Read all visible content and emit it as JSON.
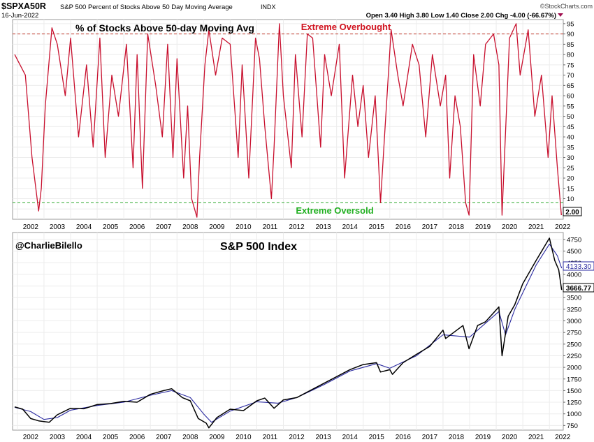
{
  "header": {
    "symbol": "$SPXA50R",
    "description": "S&P 500 Percent of Stocks Above 50 Day Moving Average",
    "exchange": "INDX",
    "date": "16-Jun-2022",
    "ohlc": "Open 3.40  High 3.80  Low 1.40  Close 2.00  Chg -4.00 (-66.67%)",
    "brand": "©StockCharts.com"
  },
  "chart_data": [
    {
      "type": "line",
      "title": "% of Stocks Above 50-day Moving Avg",
      "annotations": [
        "Extreme Overbought",
        "Extreme Oversold"
      ],
      "reference_lines": [
        {
          "label": "Extreme Overbought",
          "y": 90,
          "color": "#c0392b"
        },
        {
          "label": "Extreme Oversold",
          "y": 8,
          "color": "#2eaa2e"
        }
      ],
      "ylim": [
        0,
        97
      ],
      "y_ticks": [
        5,
        10,
        15,
        20,
        25,
        30,
        35,
        40,
        45,
        50,
        55,
        60,
        65,
        70,
        75,
        80,
        85,
        90,
        95
      ],
      "last_value_label": "2.00",
      "series": [
        {
          "color": "#c8102e",
          "x": [
            2001.9,
            2002.3,
            2002.55,
            2002.8,
            2002.9,
            2003.05,
            2003.3,
            2003.5,
            2003.8,
            2004.0,
            2004.3,
            2004.6,
            2004.85,
            2005.1,
            2005.3,
            2005.55,
            2005.8,
            2006.1,
            2006.35,
            2006.5,
            2006.7,
            2006.9,
            2007.2,
            2007.45,
            2007.65,
            2007.85,
            2008.0,
            2008.25,
            2008.4,
            2008.55,
            2008.75,
            2008.85,
            2009.05,
            2009.2,
            2009.45,
            2009.7,
            2010.0,
            2010.3,
            2010.45,
            2010.7,
            2010.95,
            2011.1,
            2011.3,
            2011.55,
            2011.65,
            2011.85,
            2012.0,
            2012.3,
            2012.45,
            2012.7,
            2012.9,
            2013.1,
            2013.4,
            2013.55,
            2013.8,
            2014.1,
            2014.3,
            2014.6,
            2014.8,
            2015.0,
            2015.2,
            2015.45,
            2015.65,
            2015.8,
            2016.05,
            2016.3,
            2016.5,
            2016.85,
            2017.1,
            2017.35,
            2017.6,
            2017.9,
            2018.1,
            2018.25,
            2018.45,
            2018.65,
            2018.85,
            2018.98,
            2019.15,
            2019.4,
            2019.6,
            2019.9,
            2020.1,
            2020.22,
            2020.5,
            2020.75,
            2020.9,
            2021.2,
            2021.45,
            2021.7,
            2021.95,
            2022.1,
            2022.3,
            2022.45
          ],
          "y": [
            80,
            70,
            30,
            4,
            15,
            55,
            93,
            85,
            60,
            88,
            40,
            75,
            35,
            88,
            30,
            70,
            50,
            85,
            25,
            80,
            15,
            90,
            65,
            40,
            85,
            30,
            78,
            20,
            55,
            10,
            1,
            30,
            75,
            92,
            70,
            88,
            85,
            30,
            75,
            20,
            88,
            78,
            45,
            10,
            35,
            95,
            60,
            25,
            80,
            40,
            90,
            88,
            35,
            80,
            60,
            85,
            20,
            70,
            45,
            65,
            30,
            60,
            8,
            40,
            92,
            70,
            55,
            85,
            75,
            40,
            80,
            55,
            70,
            20,
            60,
            45,
            8,
            2,
            80,
            55,
            85,
            90,
            75,
            2,
            88,
            95,
            70,
            92,
            50,
            70,
            30,
            60,
            25,
            2
          ]
        }
      ]
    },
    {
      "type": "line",
      "title": "S&P 500 Index",
      "watermark": "@CharlieBilello",
      "ylim": [
        650,
        4900
      ],
      "y_ticks": [
        750,
        1000,
        1250,
        1500,
        1750,
        2000,
        2250,
        2500,
        2750,
        3000,
        3250,
        3500,
        3750,
        4000,
        4250,
        4500,
        4750
      ],
      "last_value_labels": [
        "4133.30",
        "3666.77"
      ],
      "series": [
        {
          "color": "#000000",
          "x": [
            2001.9,
            2002.2,
            2002.5,
            2002.8,
            2003.2,
            2003.5,
            2004.0,
            2004.5,
            2005.0,
            2005.5,
            2006.0,
            2006.5,
            2007.0,
            2007.5,
            2007.8,
            2008.2,
            2008.5,
            2008.8,
            2009.1,
            2009.2,
            2009.5,
            2010.0,
            2010.5,
            2011.0,
            2011.3,
            2011.65,
            2012.0,
            2012.5,
            2013.0,
            2013.5,
            2014.0,
            2014.5,
            2015.0,
            2015.5,
            2015.65,
            2016.0,
            2016.1,
            2016.5,
            2017.0,
            2017.5,
            2018.0,
            2018.1,
            2018.75,
            2018.98,
            2019.3,
            2019.6,
            2020.1,
            2020.22,
            2020.45,
            2020.7,
            2021.0,
            2021.5,
            2022.0,
            2022.2,
            2022.35,
            2022.46
          ],
          "y": [
            1150,
            1100,
            900,
            850,
            820,
            980,
            1120,
            1110,
            1200,
            1220,
            1270,
            1250,
            1420,
            1500,
            1540,
            1350,
            1280,
            900,
            800,
            700,
            920,
            1100,
            1070,
            1280,
            1340,
            1120,
            1300,
            1350,
            1500,
            1650,
            1800,
            1950,
            2060,
            2100,
            1900,
            1950,
            1850,
            2100,
            2280,
            2450,
            2800,
            2620,
            2900,
            2400,
            2900,
            2980,
            3300,
            2250,
            3100,
            3350,
            3800,
            4300,
            4780,
            4300,
            4100,
            3666.77
          ]
        },
        {
          "color": "#2a2aa0",
          "x": [
            2001.9,
            2002.5,
            2003.0,
            2003.5,
            2004.0,
            2005.0,
            2006.0,
            2007.0,
            2007.8,
            2008.5,
            2009.0,
            2009.3,
            2010.0,
            2011.0,
            2011.8,
            2012.5,
            2013.5,
            2014.5,
            2015.5,
            2016.0,
            2017.0,
            2018.0,
            2019.0,
            2020.1,
            2020.35,
            2020.7,
            2021.5,
            2022.0,
            2022.3,
            2022.46
          ],
          "y": [
            1140,
            1050,
            880,
            920,
            1080,
            1180,
            1250,
            1400,
            1500,
            1350,
            1000,
            820,
            1060,
            1260,
            1230,
            1350,
            1620,
            1920,
            2080,
            1980,
            2250,
            2700,
            2650,
            3200,
            2700,
            3250,
            4200,
            4650,
            4400,
            4133.3
          ]
        }
      ]
    }
  ],
  "x_axis_years": [
    "2002",
    "2003",
    "2004",
    "2005",
    "2006",
    "2007",
    "2008",
    "2009",
    "2010",
    "2011",
    "2012",
    "2013",
    "2014",
    "2015",
    "2016",
    "2017",
    "2018",
    "2019",
    "2020",
    "2021",
    "2022"
  ]
}
